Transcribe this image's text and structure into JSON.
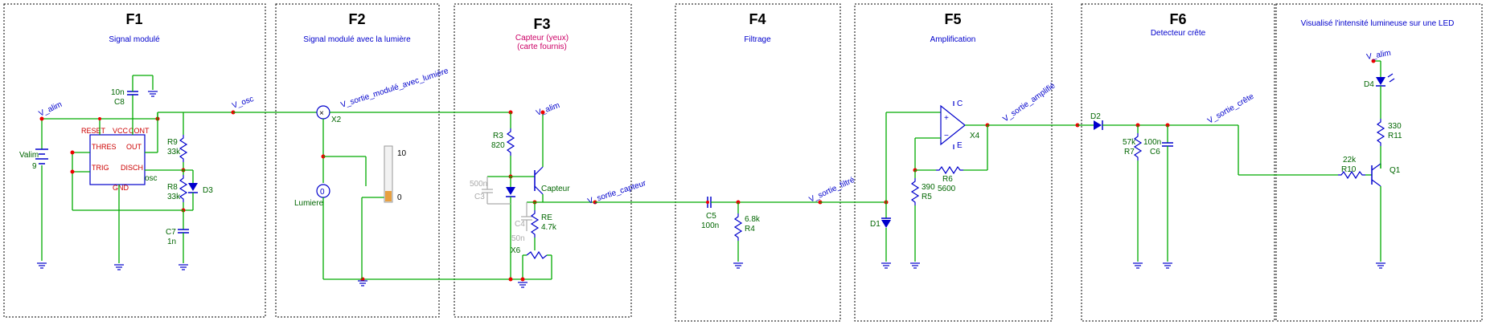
{
  "sections": [
    {
      "id": "F1",
      "title": "F1",
      "subtitle": "Signal modulé"
    },
    {
      "id": "F2",
      "title": "F2",
      "subtitle": "Signal modulé avec la lumière"
    },
    {
      "id": "F3",
      "title": "F3",
      "subtitle": "Capteur (yeux)",
      "subtitle2": "(carte fournis)"
    },
    {
      "id": "F4",
      "title": "F4",
      "subtitle": "Filtrage"
    },
    {
      "id": "F5",
      "title": "F5",
      "subtitle": "Amplification"
    },
    {
      "id": "F6",
      "title": "F6",
      "subtitle": "Detecteur crête"
    },
    {
      "id": "F7",
      "subtitle": "Visualisé l'intensité lumineuse sur une LED"
    }
  ],
  "nets": {
    "v_alim": "V_alim",
    "v_osc": "V_osc",
    "v_sortie_module": "V_sortie_modulé_avec_lumière",
    "v_sortie_capteur": "V_sortie_capteur",
    "v_sortie_filtre": "V_sortie_filtré",
    "v_sortie_amplifie": "V_sortie_amplifié",
    "v_sortie_crete": "V_sortie_crête"
  },
  "f1": {
    "valim_name": "Valim",
    "valim_value": "9",
    "c8_value": "10n",
    "c8_name": "C8",
    "ic_pins": {
      "reset": "RESET",
      "vcc": "VCC",
      "cont": "CONT",
      "thres": "THRES",
      "out": "OUT",
      "trig": "TRIG",
      "disch": "DISCH",
      "gnd": "GND"
    },
    "ic_name": "osc",
    "r9_name": "R9",
    "r9_value": "33k",
    "r8_name": "R8",
    "r8_value": "33k",
    "d3_name": "D3",
    "c7_name": "C7",
    "c7_value": "1n"
  },
  "f2": {
    "x2_name": "X2",
    "lumiere_name": "Lumiere",
    "slider_max": "10",
    "slider_min": "0"
  },
  "f3": {
    "r3_name": "R3",
    "r3_value": "820",
    "capteur_name": "Capteur",
    "c3_value": "500n",
    "c3_name": "C3",
    "c4_name": "C4",
    "c4_value": "50n",
    "re_name": "RE",
    "re_value": "4.7k",
    "x6_name": "X6"
  },
  "f4": {
    "c5_name": "C5",
    "c5_value": "100n",
    "r4_value": "6.8k",
    "r4_name": "R4"
  },
  "f5": {
    "d1_name": "D1",
    "vc_label": "C",
    "ve_label": "E",
    "x4_name": "X4",
    "r5_value": "390",
    "r5_name": "R5",
    "r6_name": "R6",
    "r6_value": "5600"
  },
  "f6": {
    "d2_name": "D2",
    "r7_value": "57k",
    "r7_name": "R7",
    "c6_value": "100n",
    "c6_name": "C6"
  },
  "f7": {
    "d4_name": "D4",
    "r11_value": "330",
    "r11_name": "R11",
    "r10_value": "22k",
    "r10_name": "R10",
    "q1_name": "Q1"
  },
  "colors": {
    "wire": "#00aa00",
    "component": "#0000cc",
    "ic": "#cc0000",
    "node": "#ee0000",
    "title": "#000000"
  }
}
